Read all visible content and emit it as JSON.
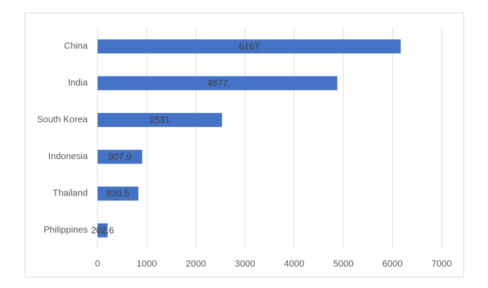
{
  "chart_data": {
    "type": "bar",
    "orientation": "horizontal",
    "categories": [
      "China",
      "India",
      "South Korea",
      "Indonesia",
      "Thailand",
      "Philippines"
    ],
    "values": [
      6167,
      4877,
      2531,
      907.9,
      830.5,
      202.6
    ],
    "color": "#4472c4",
    "xlim": [
      0,
      7000
    ],
    "xticks": [
      0,
      1000,
      2000,
      3000,
      4000,
      5000,
      6000,
      7000
    ],
    "grid": true
  }
}
